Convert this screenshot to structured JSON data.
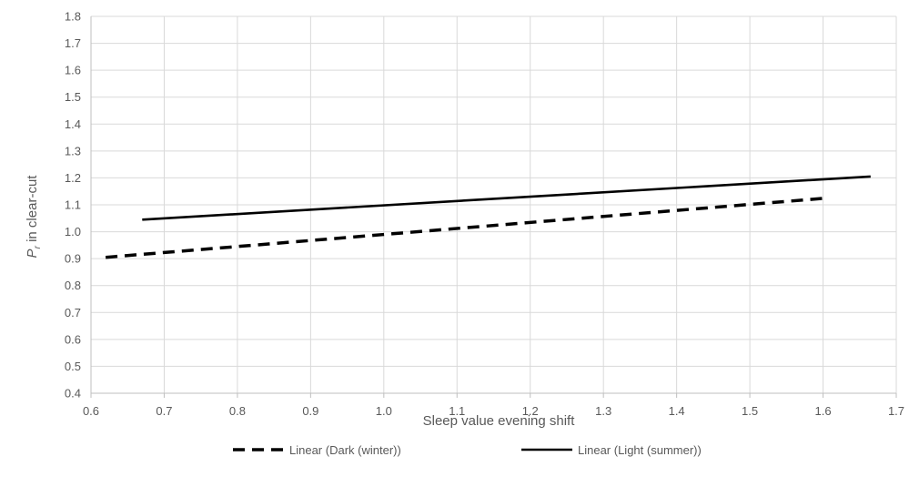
{
  "chart_data": {
    "type": "line",
    "xlabel": "Sleep value evening shift",
    "ylabel_main": "P",
    "ylabel_sub": "r",
    "ylabel_rest": " in clear-cut",
    "xlim": [
      0.6,
      1.7
    ],
    "ylim": [
      0.4,
      1.8
    ],
    "x_ticks": [
      "0.6",
      "0.7",
      "0.8",
      "0.9",
      "1.0",
      "1.1",
      "1.2",
      "1.3",
      "1.4",
      "1.5",
      "1.6",
      "1.7"
    ],
    "y_ticks": [
      "0.4",
      "0.5",
      "0.6",
      "0.7",
      "0.8",
      "0.9",
      "1.0",
      "1.1",
      "1.2",
      "1.3",
      "1.4",
      "1.5",
      "1.6",
      "1.7",
      "1.8"
    ],
    "grid": true,
    "legend_position": "bottom",
    "series": [
      {
        "name": "Linear (Dark (winter))",
        "style": "dashed",
        "color": "#000000",
        "x": [
          0.62,
          1.605
        ],
        "y": [
          0.905,
          1.125
        ]
      },
      {
        "name": "Linear (Light (summer))",
        "style": "solid",
        "color": "#000000",
        "x": [
          0.67,
          1.665
        ],
        "y": [
          1.045,
          1.205
        ]
      }
    ],
    "colors": {
      "grid": "#d9d9d9",
      "axis": "#bfbfbf",
      "text": "#595959"
    }
  }
}
